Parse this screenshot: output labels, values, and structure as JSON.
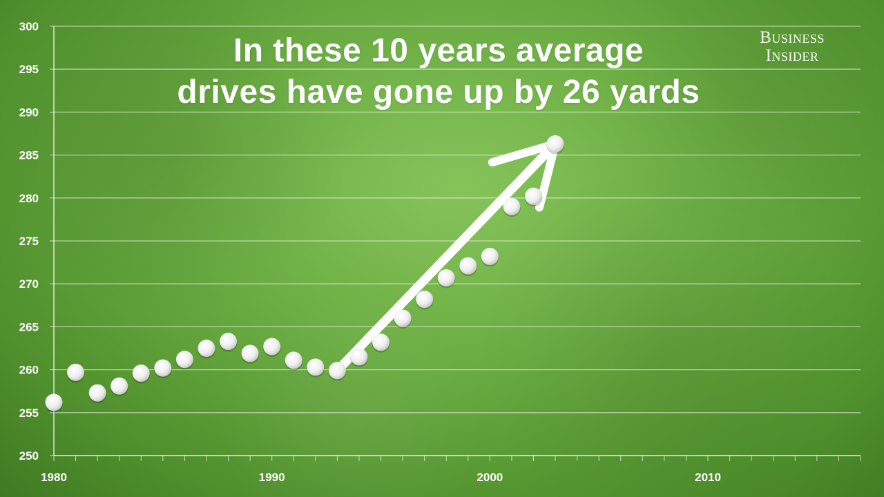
{
  "headline": {
    "line1": "In these 10 years average",
    "line2": "drives have gone up by 26 yards"
  },
  "logo": {
    "line1": "Business",
    "line2": "Insider"
  },
  "chart_data": {
    "type": "scatter",
    "title": "In these 10 years average drives have gone up by 26 yards",
    "xlabel": "",
    "ylabel": "",
    "xlim": [
      1980,
      2017
    ],
    "ylim": [
      250,
      300
    ],
    "x_ticks": [
      1980,
      1990,
      2000,
      2010
    ],
    "y_ticks": [
      250,
      255,
      260,
      265,
      270,
      275,
      280,
      285,
      290,
      295,
      300
    ],
    "grid": true,
    "series": [
      {
        "x": [
          1980,
          1981,
          1982,
          1983,
          1984,
          1985,
          1986,
          1987,
          1988,
          1989,
          1990,
          1991,
          1992,
          1993,
          1994,
          1995,
          1996,
          1997,
          1998,
          1999,
          2000,
          2001,
          2002,
          2003
        ],
        "y": [
          256.2,
          259.7,
          257.3,
          258.1,
          259.6,
          260.2,
          261.2,
          262.5,
          263.3,
          261.9,
          262.7,
          261.1,
          260.3,
          259.9,
          261.5,
          263.2,
          266.0,
          268.2,
          270.7,
          272.1,
          273.2,
          279.0,
          280.2,
          286.3
        ]
      }
    ],
    "annotation": {
      "type": "arrow",
      "from": {
        "x": 1993,
        "y": 259.9
      },
      "to": {
        "x": 2003,
        "y": 286.3
      }
    }
  },
  "colors": {
    "points": "#f2f2f2",
    "gridlines": "#ffffff",
    "text": "#ffffff",
    "background": "#6cae43"
  }
}
